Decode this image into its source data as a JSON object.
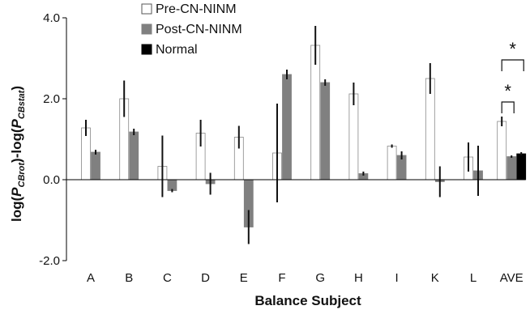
{
  "chart_data": {
    "type": "bar",
    "title": "",
    "xlabel": "Balance Subject",
    "ylabel_parts": {
      "prefix": "log(",
      "p1": "P",
      "sub1": "CBrot",
      "mid": ")-log(",
      "p2": "P",
      "sub2": "CBstat",
      "suffix": ")"
    },
    "ylim": [
      -2.0,
      4.0
    ],
    "yticks": [
      "-2.0",
      "0.0",
      "2.0",
      "4.0"
    ],
    "ytick_values": [
      -2.0,
      0.0,
      2.0,
      4.0
    ],
    "grid": false,
    "legend_position": "top-left",
    "categories": [
      "A",
      "B",
      "C",
      "D",
      "E",
      "F",
      "G",
      "H",
      "I",
      "K",
      "L",
      "AVE"
    ],
    "series": [
      {
        "name": "Pre-CN-NINM",
        "color": "#ffffff",
        "values": [
          1.28,
          2.0,
          0.33,
          1.15,
          1.05,
          0.66,
          3.32,
          2.12,
          0.83,
          2.5,
          0.56,
          1.44
        ],
        "errors": [
          0.2,
          0.45,
          0.76,
          0.33,
          0.28,
          1.22,
          0.48,
          0.28,
          0.04,
          0.38,
          0.36,
          0.12
        ]
      },
      {
        "name": "Post-CN-NINM",
        "color": "#808080",
        "values": [
          0.68,
          1.18,
          -0.27,
          -0.1,
          -1.17,
          2.6,
          2.4,
          0.15,
          0.6,
          -0.05,
          0.22,
          0.57
        ],
        "errors": [
          0.06,
          0.08,
          0.04,
          0.27,
          0.42,
          0.12,
          0.08,
          0.05,
          0.1,
          0.38,
          0.62,
          0.03
        ]
      },
      {
        "name": "Normal",
        "color": "#000000",
        "values": [
          null,
          null,
          null,
          null,
          null,
          null,
          null,
          null,
          null,
          null,
          null,
          0.64
        ],
        "errors": [
          null,
          null,
          null,
          null,
          null,
          null,
          null,
          null,
          null,
          null,
          null,
          0.04
        ]
      }
    ],
    "annotations": [
      {
        "text": "*",
        "category": "AVE",
        "bracket_between": [
          "Pre-CN-NINM",
          "Post-CN-NINM"
        ]
      },
      {
        "text": "*",
        "category": "AVE",
        "bracket_between": [
          "Pre-CN-NINM",
          "Normal"
        ]
      }
    ]
  }
}
